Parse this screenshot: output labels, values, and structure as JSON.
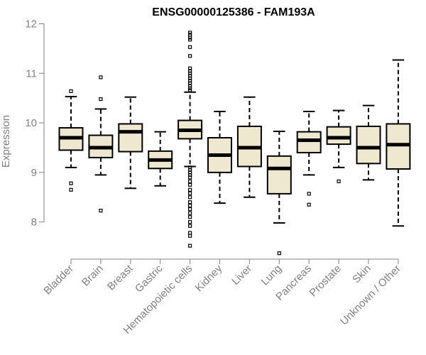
{
  "chart_data": {
    "type": "boxplot",
    "title": "ENSG00000125386 - FAM193A",
    "ylabel": "Expression",
    "xlabel": "",
    "ylim": [
      7.25,
      12.05
    ],
    "yticks": [
      8,
      9,
      10,
      11,
      12
    ],
    "colors": {
      "box_fill": "#EFE8D0",
      "stroke": "#000000",
      "axis": "#808080"
    },
    "categories": [
      "Bladder",
      "Brain",
      "Breast",
      "Gastric",
      "Hematopoietic cells",
      "Kidney",
      "Liver",
      "Lung",
      "Pancreas",
      "Prostate",
      "Skin",
      "Unknown / Other"
    ],
    "boxes": [
      {
        "whisker_low": 9.1,
        "q1": 9.45,
        "median": 9.7,
        "q3": 9.9,
        "whisker_high": 10.53,
        "outliers": [
          10.64,
          8.78,
          8.65
        ]
      },
      {
        "whisker_low": 8.95,
        "q1": 9.3,
        "median": 9.5,
        "q3": 9.75,
        "whisker_high": 10.28,
        "outliers": [
          10.92,
          10.48,
          8.23
        ]
      },
      {
        "whisker_low": 8.68,
        "q1": 9.42,
        "median": 9.82,
        "q3": 9.98,
        "whisker_high": 10.52,
        "outliers": []
      },
      {
        "whisker_low": 8.73,
        "q1": 9.08,
        "median": 9.25,
        "q3": 9.43,
        "whisker_high": 9.82,
        "outliers": []
      },
      {
        "whisker_low": 9.12,
        "q1": 9.68,
        "median": 9.85,
        "q3": 10.05,
        "whisker_high": 10.62,
        "outliers": [
          11.82,
          11.78,
          11.72,
          11.68,
          11.53,
          11.35,
          11.1,
          11.05,
          11.0,
          10.95,
          10.9,
          10.85,
          10.8,
          10.75,
          10.7,
          10.66,
          9.1,
          9.05,
          9.0,
          8.95,
          8.9,
          8.82,
          8.75,
          8.65,
          8.58,
          8.5,
          8.4,
          8.33,
          8.26,
          8.18,
          8.1,
          8.0,
          7.92,
          7.78,
          7.72,
          7.52
        ]
      },
      {
        "whisker_low": 8.38,
        "q1": 9.0,
        "median": 9.35,
        "q3": 9.7,
        "whisker_high": 10.23,
        "outliers": []
      },
      {
        "whisker_low": 8.5,
        "q1": 9.12,
        "median": 9.5,
        "q3": 9.93,
        "whisker_high": 10.52,
        "outliers": []
      },
      {
        "whisker_low": 7.98,
        "q1": 8.57,
        "median": 9.08,
        "q3": 9.33,
        "whisker_high": 9.83,
        "outliers": [
          7.37
        ]
      },
      {
        "whisker_low": 8.95,
        "q1": 9.4,
        "median": 9.65,
        "q3": 9.82,
        "whisker_high": 10.23,
        "outliers": [
          8.57,
          8.35
        ]
      },
      {
        "whisker_low": 9.1,
        "q1": 9.57,
        "median": 9.7,
        "q3": 9.92,
        "whisker_high": 10.25,
        "outliers": [
          8.82
        ]
      },
      {
        "whisker_low": 8.85,
        "q1": 9.18,
        "median": 9.5,
        "q3": 9.93,
        "whisker_high": 10.35,
        "outliers": []
      },
      {
        "whisker_low": 7.92,
        "q1": 9.07,
        "median": 9.56,
        "q3": 9.98,
        "whisker_high": 11.27,
        "outliers": []
      }
    ]
  }
}
